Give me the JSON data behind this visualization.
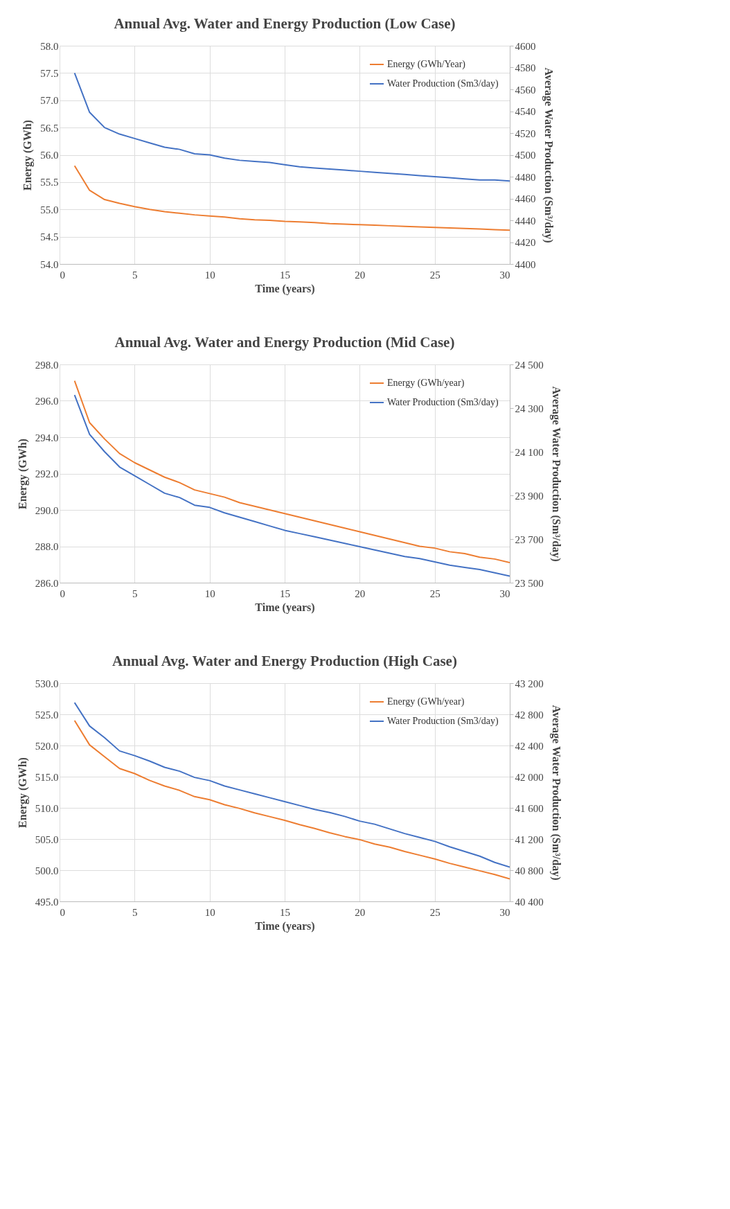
{
  "chart_data": [
    {
      "type": "line",
      "title": "Annual Avg. Water and Energy Production (Low Case)",
      "xlabel": "Time (years)",
      "ylabel": "Energy (GWh)",
      "y2label": "Average Water Production (Sm³/day)",
      "x": [
        1,
        2,
        3,
        4,
        5,
        6,
        7,
        8,
        9,
        10,
        11,
        12,
        13,
        14,
        15,
        16,
        17,
        18,
        19,
        20,
        21,
        22,
        23,
        24,
        25,
        26,
        27,
        28,
        29,
        30
      ],
      "xlim": [
        0,
        30
      ],
      "xticks": [
        0,
        5,
        10,
        15,
        20,
        25,
        30
      ],
      "ylim": [
        54,
        58
      ],
      "yticks": [
        {
          "value": 54,
          "label": "54.0"
        },
        {
          "value": 54.5,
          "label": "54.5"
        },
        {
          "value": 55,
          "label": "55.0"
        },
        {
          "value": 55.5,
          "label": "55.5"
        },
        {
          "value": 56,
          "label": "56.0"
        },
        {
          "value": 56.5,
          "label": "56.5"
        },
        {
          "value": 57,
          "label": "57.0"
        },
        {
          "value": 57.5,
          "label": "57.5"
        },
        {
          "value": 58,
          "label": "58.0"
        }
      ],
      "y2lim": [
        4400,
        4600
      ],
      "y2ticks": [
        4400,
        4420,
        4440,
        4460,
        4480,
        4500,
        4520,
        4540,
        4560,
        4580,
        4600
      ],
      "grid": true,
      "legend": "top right",
      "series": [
        {
          "name": "Energy (GWh/Year)",
          "color": "#ed7d31",
          "values": [
            55.8,
            55.35,
            55.18,
            55.11,
            55.05,
            55.0,
            54.96,
            54.93,
            54.9,
            54.88,
            54.86,
            54.83,
            54.81,
            54.8,
            54.78,
            54.77,
            54.76,
            54.74,
            54.73,
            54.72,
            54.71,
            54.7,
            54.69,
            54.68,
            54.67,
            54.66,
            54.65,
            54.64,
            54.63,
            54.62
          ]
        },
        {
          "name": "Water Production (Sm3/day)",
          "color": "#4472c4",
          "axis": "y2",
          "values": [
            4575,
            4539,
            4525,
            4519,
            4515,
            4511,
            4507,
            4505,
            4501,
            4500,
            4497,
            4495,
            4494,
            4493,
            4491,
            4489,
            4488,
            4487,
            4486,
            4485,
            4484,
            4483,
            4482,
            4481,
            4480,
            4479,
            4478,
            4477,
            4477,
            4476
          ]
        }
      ]
    },
    {
      "type": "line",
      "title": "Annual Avg. Water and Energy Production (Mid Case)",
      "xlabel": "Time (years)",
      "ylabel": "Energy (GWh)",
      "y2label": "Average Water Production (Sm³/day)",
      "x": [
        1,
        2,
        3,
        4,
        5,
        6,
        7,
        8,
        9,
        10,
        11,
        12,
        13,
        14,
        15,
        16,
        17,
        18,
        19,
        20,
        21,
        22,
        23,
        24,
        25,
        26,
        27,
        28,
        29,
        30
      ],
      "xlim": [
        0,
        30
      ],
      "xticks": [
        0,
        5,
        10,
        15,
        20,
        25,
        30
      ],
      "ylim": [
        286,
        298
      ],
      "yticks": [
        {
          "value": 286,
          "label": "286.0"
        },
        {
          "value": 288,
          "label": "288.0"
        },
        {
          "value": 290,
          "label": "290.0"
        },
        {
          "value": 292,
          "label": "292.0"
        },
        {
          "value": 294,
          "label": "294.0"
        },
        {
          "value": 296,
          "label": "296.0"
        },
        {
          "value": 298,
          "label": "298.0"
        }
      ],
      "y2lim": [
        23500,
        24500
      ],
      "y2ticks": [
        {
          "value": 23500,
          "label": "23 500"
        },
        {
          "value": 23700,
          "label": "23 700"
        },
        {
          "value": 23900,
          "label": "23 900"
        },
        {
          "value": 24100,
          "label": "24 100"
        },
        {
          "value": 24300,
          "label": "24 300"
        },
        {
          "value": 24500,
          "label": "24 500"
        }
      ],
      "grid": true,
      "legend": "top right",
      "series": [
        {
          "name": "Energy (GWh/year)",
          "color": "#ed7d31",
          "values": [
            297.1,
            294.8,
            293.9,
            293.1,
            292.6,
            292.2,
            291.8,
            291.5,
            291.1,
            290.9,
            290.7,
            290.4,
            290.2,
            290.0,
            289.8,
            289.6,
            289.4,
            289.2,
            289.0,
            288.8,
            288.6,
            288.4,
            288.2,
            288.0,
            287.9,
            287.7,
            287.6,
            287.4,
            287.3,
            287.1
          ]
        },
        {
          "name": "Water Production (Sm3/day)",
          "color": "#4472c4",
          "axis": "y2",
          "values": [
            24360,
            24180,
            24100,
            24030,
            23990,
            23950,
            23910,
            23890,
            23855,
            23845,
            23820,
            23800,
            23780,
            23760,
            23740,
            23725,
            23710,
            23695,
            23680,
            23665,
            23650,
            23635,
            23620,
            23610,
            23595,
            23580,
            23570,
            23560,
            23545,
            23530
          ]
        }
      ]
    },
    {
      "type": "line",
      "title": "Annual Avg. Water and Energy Production (High Case)",
      "xlabel": "Time (years)",
      "ylabel": "Energy (GWh)",
      "y2label": "Average Water Production (Sm³/day)",
      "x": [
        1,
        2,
        3,
        4,
        5,
        6,
        7,
        8,
        9,
        10,
        11,
        12,
        13,
        14,
        15,
        16,
        17,
        18,
        19,
        20,
        21,
        22,
        23,
        24,
        25,
        26,
        27,
        28,
        29,
        30
      ],
      "xlim": [
        0,
        30
      ],
      "xticks": [
        0,
        5,
        10,
        15,
        20,
        25,
        30
      ],
      "ylim": [
        495,
        530
      ],
      "yticks": [
        {
          "value": 495,
          "label": "495.0"
        },
        {
          "value": 500,
          "label": "500.0"
        },
        {
          "value": 505,
          "label": "505.0"
        },
        {
          "value": 510,
          "label": "510.0"
        },
        {
          "value": 515,
          "label": "515.0"
        },
        {
          "value": 520,
          "label": "520.0"
        },
        {
          "value": 525,
          "label": "525.0"
        },
        {
          "value": 530,
          "label": "530.0"
        }
      ],
      "y2lim": [
        40400,
        43200
      ],
      "y2ticks": [
        {
          "value": 40400,
          "label": "40 400"
        },
        {
          "value": 40800,
          "label": "40 800"
        },
        {
          "value": 41200,
          "label": "41 200"
        },
        {
          "value": 41600,
          "label": "41 600"
        },
        {
          "value": 42000,
          "label": "42 000"
        },
        {
          "value": 42400,
          "label": "42 400"
        },
        {
          "value": 42800,
          "label": "42 800"
        },
        {
          "value": 43200,
          "label": "43 200"
        }
      ],
      "grid": true,
      "legend": "top right",
      "series": [
        {
          "name": "Energy (GWh/year)",
          "color": "#ed7d31",
          "values": [
            524.0,
            520.1,
            518.2,
            516.3,
            515.5,
            514.4,
            513.5,
            512.8,
            511.8,
            511.3,
            510.5,
            509.9,
            509.2,
            508.6,
            508.0,
            507.3,
            506.7,
            506.0,
            505.4,
            504.9,
            504.2,
            503.7,
            503.0,
            502.4,
            501.8,
            501.1,
            500.5,
            499.9,
            499.3,
            498.6
          ]
        },
        {
          "name": "Water Production (Sm3/day)",
          "color": "#4472c4",
          "axis": "y2",
          "values": [
            42950,
            42650,
            42500,
            42330,
            42270,
            42200,
            42120,
            42070,
            41990,
            41950,
            41880,
            41830,
            41780,
            41730,
            41680,
            41630,
            41580,
            41540,
            41490,
            41430,
            41390,
            41330,
            41270,
            41220,
            41170,
            41100,
            41040,
            40980,
            40900,
            40840
          ]
        }
      ]
    }
  ]
}
